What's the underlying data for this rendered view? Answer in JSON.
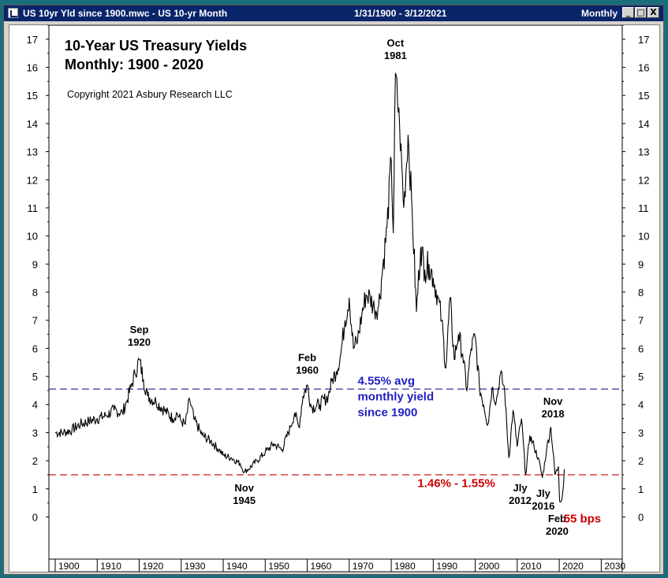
{
  "window": {
    "title": "US 10yr Yld since 1900.mwc - US 10-yr Month",
    "date_range": "1/31/1900 - 3/12/2021",
    "period": "Monthly",
    "buttons": {
      "minimize": "_",
      "maximize": "□",
      "close": "X"
    }
  },
  "chart_data": {
    "type": "line",
    "title_line1": "10-Year US Treasury Yields",
    "title_line2": "Monthly: 1900 - 2020",
    "copyright": "Copyright 2021 Asbury Research LLC",
    "xlim": [
      1898.5,
      2035
    ],
    "ylim": [
      -1.5,
      17.5
    ],
    "x_ticks": [
      1900,
      1910,
      1920,
      1930,
      1940,
      1950,
      1960,
      1970,
      1980,
      1990,
      2000,
      2010,
      2020,
      2030
    ],
    "y_ticks": [
      0,
      1,
      2,
      3,
      4,
      5,
      6,
      7,
      8,
      9,
      10,
      11,
      12,
      13,
      14,
      15,
      16,
      17
    ],
    "avg_line": {
      "value": 4.55,
      "color": "#1f1f8f"
    },
    "floor_line": {
      "value": 1.5,
      "color": "#cc0000"
    },
    "series": [
      {
        "color": "#000000",
        "points": [
          [
            1900,
            3.0
          ],
          [
            1902,
            3.0
          ],
          [
            1904,
            3.1
          ],
          [
            1906,
            3.3
          ],
          [
            1908,
            3.4
          ],
          [
            1910,
            3.5
          ],
          [
            1912,
            3.6
          ],
          [
            1914,
            3.8
          ],
          [
            1916,
            3.7
          ],
          [
            1917,
            4.1
          ],
          [
            1918,
            4.6
          ],
          [
            1919,
            5.1
          ],
          [
            1920,
            5.6
          ],
          [
            1921,
            4.9
          ],
          [
            1922,
            4.3
          ],
          [
            1924,
            4.1
          ],
          [
            1926,
            3.8
          ],
          [
            1928,
            3.5
          ],
          [
            1929,
            3.7
          ],
          [
            1930,
            3.4
          ],
          [
            1931,
            3.3
          ],
          [
            1932,
            4.2
          ],
          [
            1933,
            3.5
          ],
          [
            1935,
            2.9
          ],
          [
            1937,
            2.7
          ],
          [
            1939,
            2.4
          ],
          [
            1940,
            2.2
          ],
          [
            1942,
            2.1
          ],
          [
            1944,
            1.9
          ],
          [
            1945,
            1.6
          ],
          [
            1946,
            1.7
          ],
          [
            1948,
            2.0
          ],
          [
            1950,
            2.3
          ],
          [
            1952,
            2.6
          ],
          [
            1954,
            2.4
          ],
          [
            1956,
            3.2
          ],
          [
            1957,
            3.7
          ],
          [
            1958,
            3.2
          ],
          [
            1959,
            4.3
          ],
          [
            1960,
            4.7
          ],
          [
            1961,
            3.9
          ],
          [
            1963,
            4.0
          ],
          [
            1965,
            4.3
          ],
          [
            1966,
            4.9
          ],
          [
            1967,
            5.2
          ],
          [
            1968,
            5.8
          ],
          [
            1969,
            7.0
          ],
          [
            1970,
            7.8
          ],
          [
            1971,
            6.0
          ],
          [
            1972,
            6.3
          ],
          [
            1973,
            7.2
          ],
          [
            1974,
            7.9
          ],
          [
            1975,
            7.8
          ],
          [
            1976,
            7.4
          ],
          [
            1977,
            7.5
          ],
          [
            1978,
            8.9
          ],
          [
            1979,
            10.3
          ],
          [
            1980,
            12.7
          ],
          [
            1980.5,
            10.1
          ],
          [
            1981,
            15.8
          ],
          [
            1982,
            13.9
          ],
          [
            1983,
            11.0
          ],
          [
            1984,
            13.6
          ],
          [
            1985,
            10.8
          ],
          [
            1986,
            7.3
          ],
          [
            1987,
            9.6
          ],
          [
            1988,
            8.8
          ],
          [
            1989,
            9.0
          ],
          [
            1990,
            8.5
          ],
          [
            1991,
            7.9
          ],
          [
            1992,
            7.0
          ],
          [
            1993,
            5.3
          ],
          [
            1994,
            7.8
          ],
          [
            1995,
            5.6
          ],
          [
            1996,
            6.5
          ],
          [
            1997,
            5.8
          ],
          [
            1998,
            4.5
          ],
          [
            1999,
            6.0
          ],
          [
            2000,
            6.4
          ],
          [
            2001,
            4.6
          ],
          [
            2002,
            4.0
          ],
          [
            2003,
            3.3
          ],
          [
            2004,
            4.6
          ],
          [
            2005,
            4.1
          ],
          [
            2006,
            5.1
          ],
          [
            2007,
            4.5
          ],
          [
            2008,
            2.1
          ],
          [
            2009,
            3.8
          ],
          [
            2010,
            2.5
          ],
          [
            2011,
            3.5
          ],
          [
            2012,
            1.5
          ],
          [
            2013,
            2.9
          ],
          [
            2014,
            2.5
          ],
          [
            2015,
            2.1
          ],
          [
            2016,
            1.4
          ],
          [
            2017,
            2.4
          ],
          [
            2018,
            3.2
          ],
          [
            2019,
            1.5
          ],
          [
            2019.8,
            1.8
          ],
          [
            2020.1,
            0.55
          ],
          [
            2020.6,
            0.6
          ],
          [
            2021.0,
            1.1
          ],
          [
            2021.2,
            1.7
          ]
        ]
      }
    ],
    "annotations": [
      {
        "lines": [
          "Sep",
          "1920"
        ],
        "x": 1920,
        "y": 6.1,
        "anchor": "above",
        "color": "#000000"
      },
      {
        "lines": [
          "Feb",
          "1960"
        ],
        "x": 1960,
        "y": 5.1,
        "anchor": "above",
        "color": "#000000"
      },
      {
        "lines": [
          "Oct",
          "1981"
        ],
        "x": 1981,
        "y": 16.3,
        "anchor": "above",
        "color": "#000000"
      },
      {
        "lines": [
          "Nov",
          "1945"
        ],
        "x": 1945,
        "y": 1.25,
        "anchor": "below",
        "color": "#000000"
      },
      {
        "lines": [
          "Nov",
          "2018"
        ],
        "x": 2018.5,
        "y": 3.55,
        "anchor": "above",
        "color": "#000000"
      },
      {
        "lines": [
          "Jly",
          "2012"
        ],
        "x": 2010.7,
        "y": 1.25,
        "anchor": "below",
        "color": "#000000"
      },
      {
        "lines": [
          "Jly",
          "2016"
        ],
        "x": 2016.2,
        "y": 1.05,
        "anchor": "below",
        "color": "#000000"
      },
      {
        "lines": [
          "Feb",
          "2020"
        ],
        "x": 2019.5,
        "y": 0.15,
        "anchor": "below",
        "color": "#000000"
      },
      {
        "lines": [
          "55 bps"
        ],
        "x": 2025.5,
        "y": -0.05,
        "anchor": "center",
        "color": "#cc0000"
      },
      {
        "lines": [
          "4.55% avg",
          "monthly yield",
          "since 1900"
        ],
        "x": 1972,
        "y": 4.85,
        "anchor": "block",
        "color": "#1f1fbf"
      },
      {
        "lines": [
          "1.46% - 1.55%"
        ],
        "x": 1995.5,
        "y": 1.2,
        "anchor": "center",
        "color": "#cc0000"
      }
    ]
  }
}
